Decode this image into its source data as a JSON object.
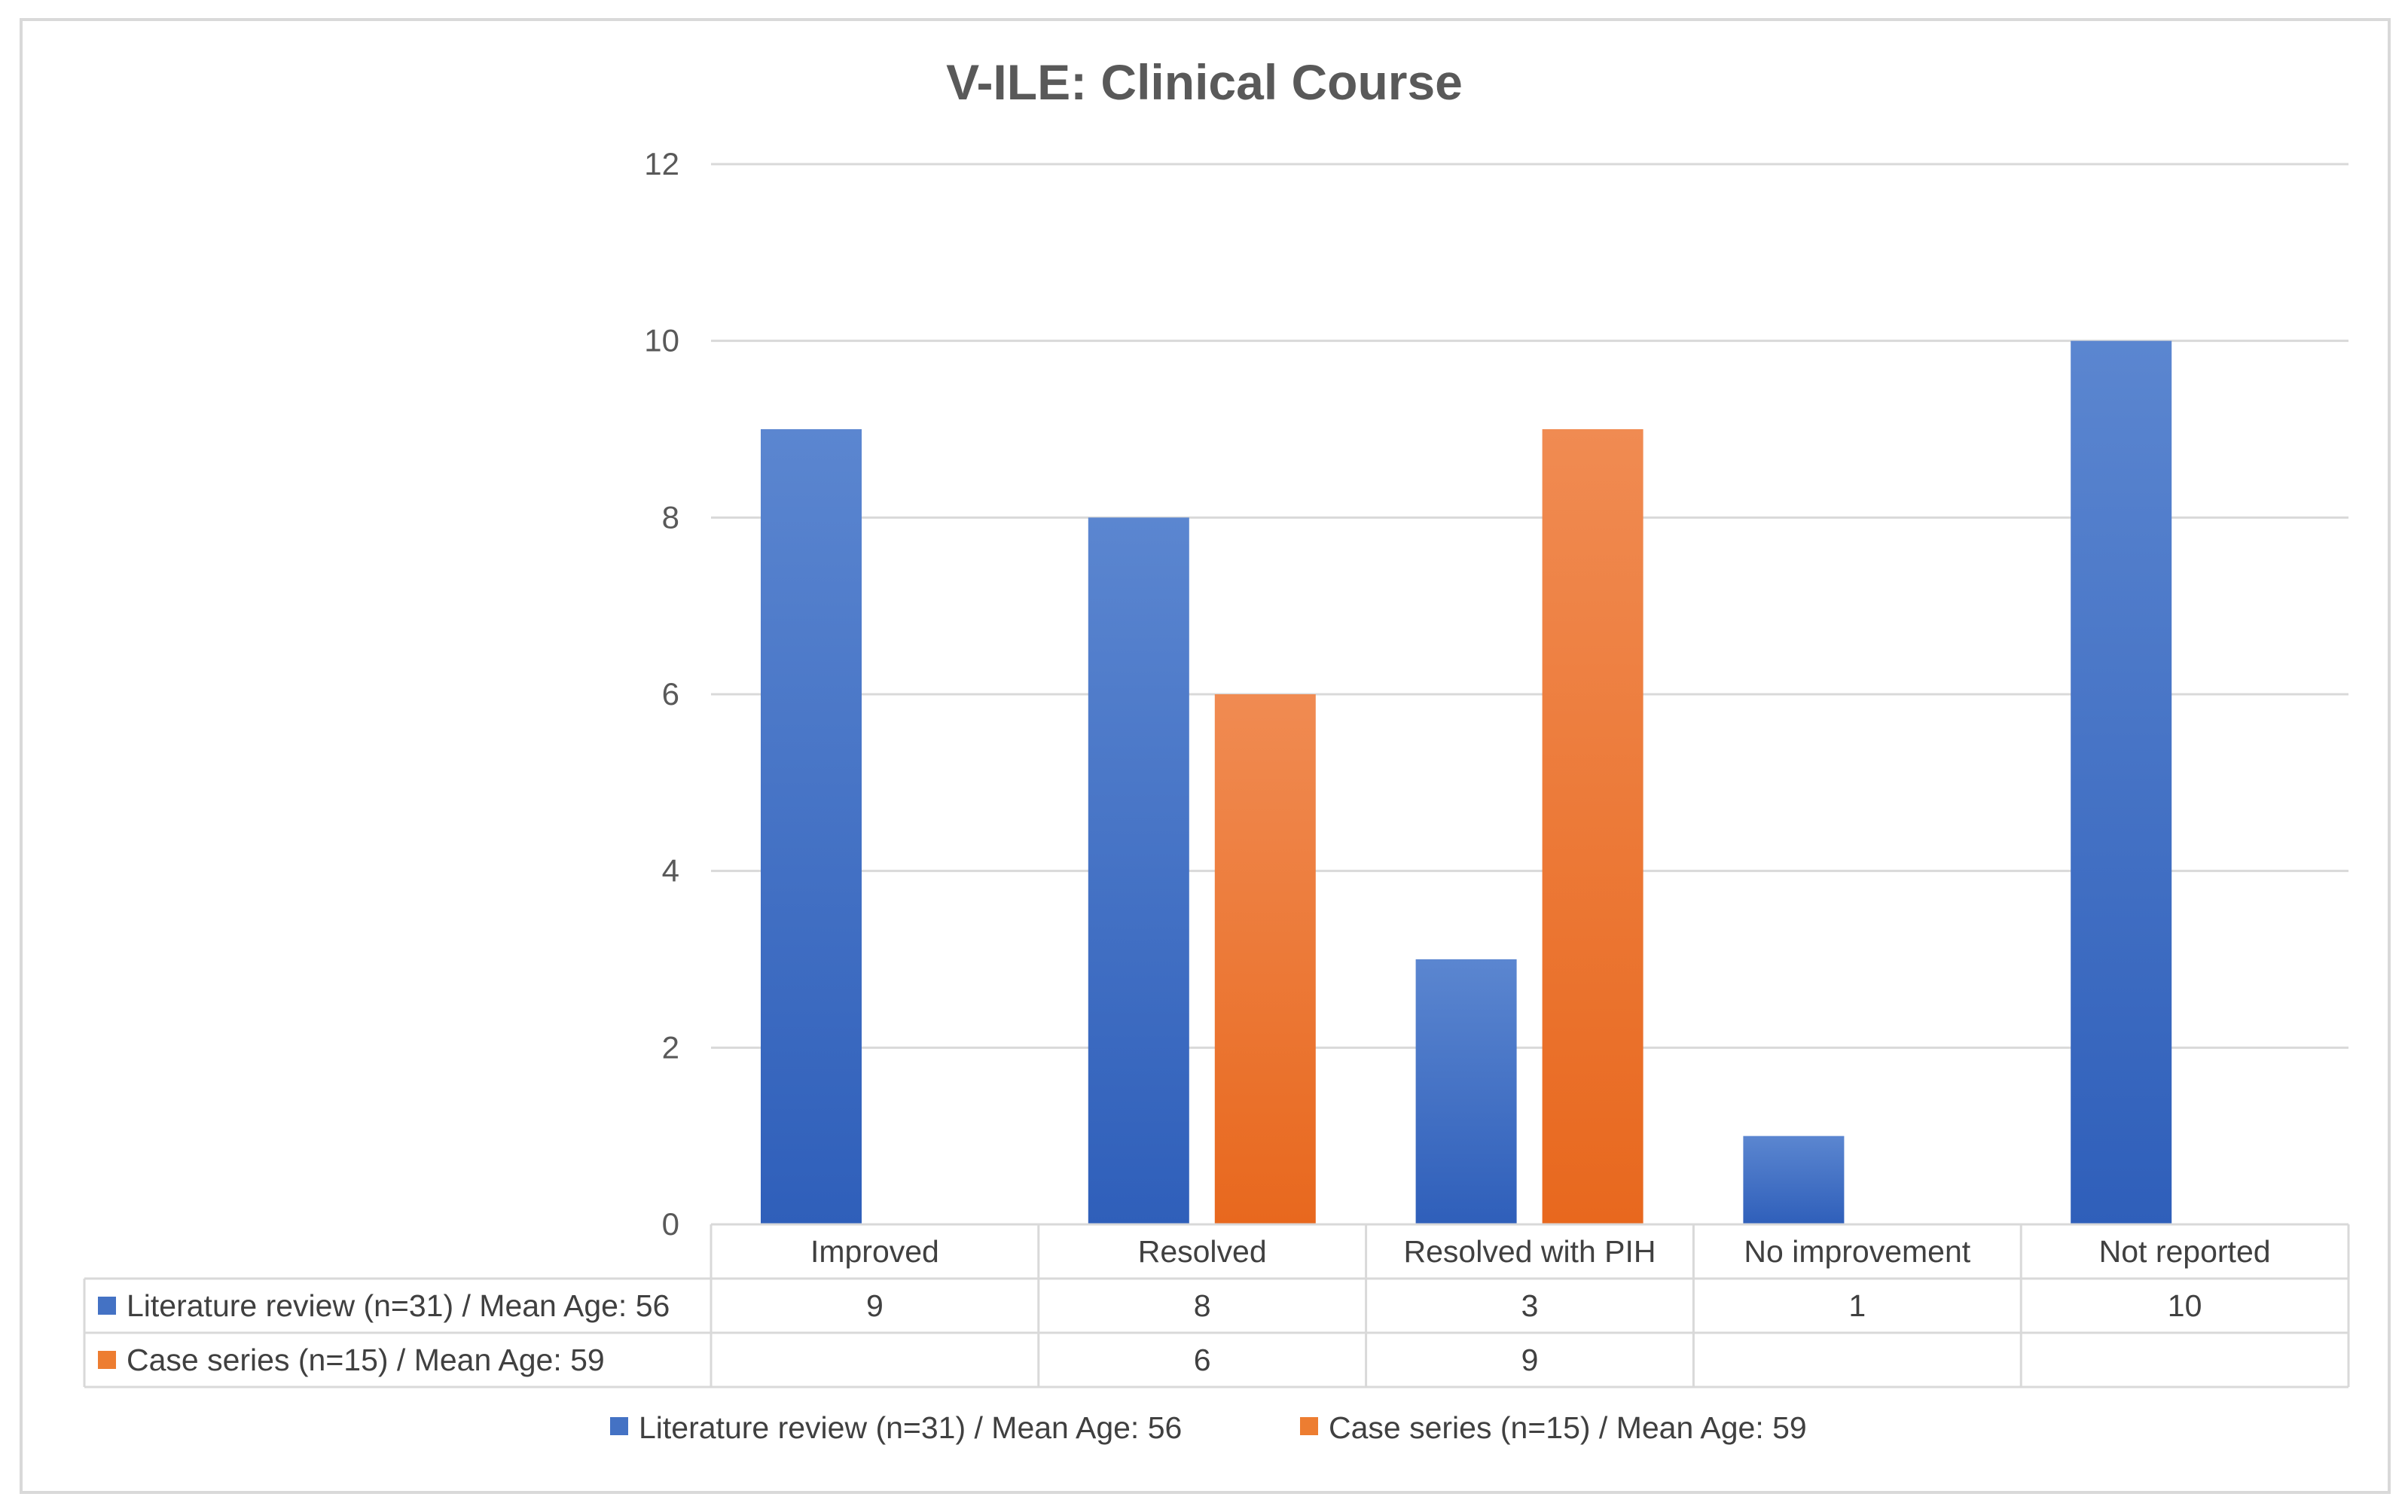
{
  "chart_data": {
    "type": "bar",
    "title": "V-ILE: Clinical Course",
    "categories": [
      "Improved",
      "Resolved",
      "Resolved with PIH",
      "No improvement",
      "Not reported"
    ],
    "series": [
      {
        "name": "Literature review (n=31) / Mean Age: 56",
        "color": "#4472c4",
        "values": [
          9,
          8,
          3,
          1,
          10
        ],
        "table_values": [
          "9",
          "8",
          "3",
          "1",
          "10"
        ]
      },
      {
        "name": "Case series (n=15) / Mean Age: 59",
        "color": "#ed7d31",
        "values": [
          null,
          6,
          9,
          null,
          null
        ],
        "table_values": [
          "",
          "6",
          "9",
          "",
          ""
        ]
      }
    ],
    "y_ticks": [
      "0",
      "2",
      "4",
      "6",
      "8",
      "10",
      "12"
    ],
    "ylim": [
      0,
      12
    ],
    "grid": true,
    "legend_position": "bottom",
    "data_table": true,
    "xlabel": "",
    "ylabel": ""
  }
}
